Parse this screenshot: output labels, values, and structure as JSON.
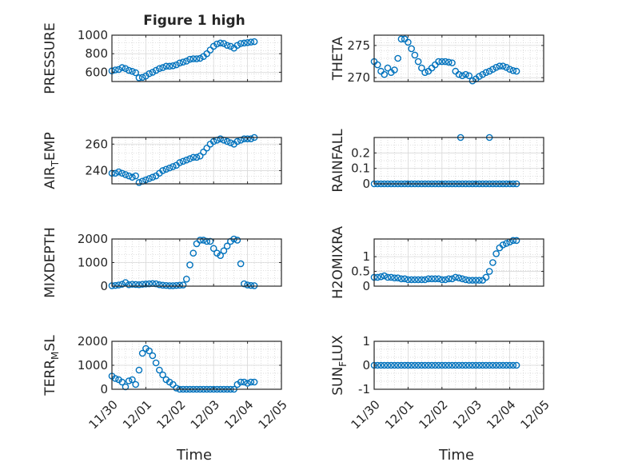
{
  "figure_title": "Figure 1 high",
  "x_tick_labels": [
    "11/30",
    "12/01",
    "12/02",
    "12/03",
    "12/04",
    "12/05"
  ],
  "x_axis_label": "Time",
  "marker_color": "#0072BD",
  "chart_data": [
    {
      "type": "scatter",
      "ylabel": "PRESSURE",
      "ylim": [
        500,
        1000
      ],
      "yticks": [
        600,
        800,
        1000
      ],
      "xlim": [
        0,
        5
      ],
      "grid": true,
      "x": [
        0.0,
        0.1,
        0.2,
        0.3,
        0.4,
        0.5,
        0.6,
        0.7,
        0.8,
        0.9,
        1.0,
        1.1,
        1.2,
        1.3,
        1.4,
        1.5,
        1.6,
        1.7,
        1.8,
        1.9,
        2.0,
        2.1,
        2.2,
        2.3,
        2.4,
        2.5,
        2.6,
        2.7,
        2.8,
        2.9,
        3.0,
        3.1,
        3.2,
        3.3,
        3.4,
        3.5,
        3.6,
        3.7,
        3.8,
        3.9,
        4.0,
        4.1,
        4.2
      ],
      "y": [
        615,
        625,
        630,
        650,
        640,
        620,
        610,
        595,
        540,
        545,
        560,
        585,
        600,
        620,
        640,
        650,
        665,
        665,
        670,
        680,
        700,
        710,
        720,
        740,
        745,
        745,
        750,
        770,
        800,
        840,
        880,
        905,
        915,
        910,
        890,
        880,
        860,
        890,
        910,
        915,
        920,
        925,
        930
      ]
    },
    {
      "type": "scatter",
      "ylabel": "THETA",
      "ylim": [
        269.4,
        276.6
      ],
      "yticks": [
        270,
        275
      ],
      "xlim": [
        0,
        5
      ],
      "grid": true,
      "x": [
        0.0,
        0.1,
        0.2,
        0.3,
        0.4,
        0.5,
        0.6,
        0.7,
        0.8,
        0.9,
        1.0,
        1.1,
        1.2,
        1.3,
        1.4,
        1.5,
        1.6,
        1.7,
        1.8,
        1.9,
        2.0,
        2.1,
        2.2,
        2.3,
        2.4,
        2.5,
        2.6,
        2.7,
        2.8,
        2.9,
        3.0,
        3.1,
        3.2,
        3.3,
        3.4,
        3.5,
        3.6,
        3.7,
        3.8,
        3.9,
        4.0,
        4.1,
        4.2
      ],
      "y": [
        272.5,
        272.0,
        271.0,
        270.5,
        271.5,
        270.8,
        271.2,
        273.0,
        276.0,
        276.0,
        275.5,
        274.5,
        273.5,
        272.5,
        271.5,
        270.8,
        271.0,
        271.5,
        272.0,
        272.5,
        272.5,
        272.5,
        272.4,
        272.3,
        271.0,
        270.5,
        270.3,
        270.5,
        270.3,
        269.5,
        269.8,
        270.2,
        270.5,
        270.8,
        271.0,
        271.3,
        271.6,
        271.8,
        271.8,
        271.6,
        271.3,
        271.1,
        271.0
      ]
    },
    {
      "type": "scatter",
      "ylabel": "AIR_TEMP",
      "ylim": [
        230,
        265
      ],
      "yticks": [
        240,
        260
      ],
      "xlim": [
        0,
        5
      ],
      "grid": true,
      "x": [
        0.0,
        0.1,
        0.2,
        0.3,
        0.4,
        0.5,
        0.6,
        0.7,
        0.8,
        0.9,
        1.0,
        1.1,
        1.2,
        1.3,
        1.4,
        1.5,
        1.6,
        1.7,
        1.8,
        1.9,
        2.0,
        2.1,
        2.2,
        2.3,
        2.4,
        2.5,
        2.6,
        2.7,
        2.8,
        2.9,
        3.0,
        3.1,
        3.2,
        3.3,
        3.4,
        3.5,
        3.6,
        3.7,
        3.8,
        3.9,
        4.0,
        4.1,
        4.2
      ],
      "y": [
        238,
        238,
        239,
        238,
        237,
        236,
        235,
        236,
        231,
        232,
        233,
        234,
        235,
        236,
        238,
        240,
        241,
        242,
        243,
        244,
        246,
        247,
        248,
        249,
        250,
        250,
        251,
        254,
        257,
        260,
        262,
        263,
        264,
        263,
        262,
        261,
        260,
        262,
        263,
        264,
        264,
        264,
        265
      ]
    },
    {
      "type": "scatter",
      "ylabel": "RAINFALL",
      "ylim": [
        0,
        0.3
      ],
      "yticks": [
        0,
        0.1,
        0.2
      ],
      "xlim": [
        0,
        5
      ],
      "grid": true,
      "x": [
        0.0,
        0.1,
        0.2,
        0.3,
        0.4,
        0.5,
        0.6,
        0.7,
        0.8,
        0.9,
        1.0,
        1.1,
        1.2,
        1.3,
        1.4,
        1.5,
        1.6,
        1.7,
        1.8,
        1.9,
        2.0,
        2.1,
        2.2,
        2.3,
        2.4,
        2.5,
        2.6,
        2.7,
        2.8,
        2.9,
        3.0,
        3.1,
        3.2,
        3.3,
        3.4,
        3.5,
        3.6,
        3.7,
        3.8,
        3.9,
        4.0,
        4.1,
        4.2,
        2.55,
        3.4
      ],
      "y": [
        0,
        0,
        0,
        0,
        0,
        0,
        0,
        0,
        0,
        0,
        0,
        0,
        0,
        0,
        0,
        0,
        0,
        0,
        0,
        0,
        0,
        0,
        0,
        0,
        0,
        0,
        0,
        0,
        0,
        0,
        0,
        0,
        0,
        0,
        0,
        0,
        0,
        0,
        0,
        0,
        0,
        0,
        0,
        0.3,
        0.3
      ]
    },
    {
      "type": "scatter",
      "ylabel": "MIXDEPTH",
      "ylim": [
        0,
        2000
      ],
      "yticks": [
        0,
        1000,
        2000
      ],
      "xlim": [
        0,
        5
      ],
      "grid": true,
      "x": [
        0.0,
        0.1,
        0.2,
        0.3,
        0.4,
        0.5,
        0.6,
        0.7,
        0.8,
        0.9,
        1.0,
        1.1,
        1.2,
        1.3,
        1.4,
        1.5,
        1.6,
        1.7,
        1.8,
        1.9,
        2.0,
        2.1,
        2.2,
        2.3,
        2.4,
        2.5,
        2.6,
        2.7,
        2.8,
        2.9,
        3.0,
        3.1,
        3.2,
        3.3,
        3.4,
        3.5,
        3.6,
        3.7,
        3.8,
        3.9,
        4.0,
        4.1,
        4.2
      ],
      "y": [
        20,
        30,
        50,
        80,
        150,
        60,
        80,
        70,
        60,
        80,
        90,
        100,
        110,
        100,
        60,
        40,
        30,
        20,
        20,
        30,
        40,
        50,
        300,
        900,
        1400,
        1800,
        1950,
        1950,
        1900,
        1900,
        1600,
        1400,
        1300,
        1500,
        1700,
        1900,
        2000,
        1950,
        950,
        100,
        50,
        30,
        20
      ]
    },
    {
      "type": "scatter",
      "ylabel": "H2OMIXRA",
      "ylim": [
        0,
        1.6
      ],
      "yticks": [
        0,
        0.5,
        1
      ],
      "xlim": [
        0,
        5
      ],
      "grid": true,
      "x": [
        0.0,
        0.1,
        0.2,
        0.3,
        0.4,
        0.5,
        0.6,
        0.7,
        0.8,
        0.9,
        1.0,
        1.1,
        1.2,
        1.3,
        1.4,
        1.5,
        1.6,
        1.7,
        1.8,
        1.9,
        2.0,
        2.1,
        2.2,
        2.3,
        2.4,
        2.5,
        2.6,
        2.7,
        2.8,
        2.9,
        3.0,
        3.1,
        3.2,
        3.3,
        3.4,
        3.5,
        3.6,
        3.7,
        3.8,
        3.9,
        4.0,
        4.1,
        4.2
      ],
      "y": [
        0.3,
        0.3,
        0.32,
        0.35,
        0.3,
        0.3,
        0.28,
        0.28,
        0.25,
        0.25,
        0.22,
        0.22,
        0.22,
        0.22,
        0.22,
        0.22,
        0.25,
        0.25,
        0.25,
        0.25,
        0.22,
        0.22,
        0.25,
        0.25,
        0.3,
        0.28,
        0.25,
        0.22,
        0.2,
        0.2,
        0.2,
        0.2,
        0.2,
        0.3,
        0.5,
        0.8,
        1.1,
        1.3,
        1.4,
        1.45,
        1.5,
        1.55,
        1.55
      ]
    },
    {
      "type": "scatter",
      "ylabel": "TERR_MSL",
      "ylim": [
        0,
        2000
      ],
      "yticks": [
        0,
        1000,
        2000
      ],
      "xlim": [
        0,
        5
      ],
      "grid": true,
      "x": [
        0.0,
        0.1,
        0.2,
        0.3,
        0.4,
        0.5,
        0.6,
        0.7,
        0.8,
        0.9,
        1.0,
        1.1,
        1.2,
        1.3,
        1.4,
        1.5,
        1.6,
        1.7,
        1.8,
        1.9,
        2.0,
        2.1,
        2.2,
        2.3,
        2.4,
        2.5,
        2.6,
        2.7,
        2.8,
        2.9,
        3.0,
        3.1,
        3.2,
        3.3,
        3.4,
        3.5,
        3.6,
        3.7,
        3.8,
        3.9,
        4.0,
        4.1,
        4.2
      ],
      "y": [
        550,
        450,
        400,
        300,
        100,
        350,
        400,
        200,
        800,
        1500,
        1700,
        1600,
        1400,
        1100,
        800,
        600,
        400,
        300,
        200,
        50,
        0,
        0,
        0,
        0,
        0,
        0,
        0,
        0,
        0,
        0,
        0,
        0,
        0,
        0,
        0,
        0,
        0,
        200,
        300,
        300,
        250,
        300,
        300
      ]
    },
    {
      "type": "scatter",
      "ylabel": "SUN_FLUX",
      "ylim": [
        -1,
        1
      ],
      "yticks": [
        -1,
        0,
        1
      ],
      "xlim": [
        0,
        5
      ],
      "grid": true,
      "x": [
        0.0,
        0.1,
        0.2,
        0.3,
        0.4,
        0.5,
        0.6,
        0.7,
        0.8,
        0.9,
        1.0,
        1.1,
        1.2,
        1.3,
        1.4,
        1.5,
        1.6,
        1.7,
        1.8,
        1.9,
        2.0,
        2.1,
        2.2,
        2.3,
        2.4,
        2.5,
        2.6,
        2.7,
        2.8,
        2.9,
        3.0,
        3.1,
        3.2,
        3.3,
        3.4,
        3.5,
        3.6,
        3.7,
        3.8,
        3.9,
        4.0,
        4.1,
        4.2
      ],
      "y": [
        0,
        0,
        0,
        0,
        0,
        0,
        0,
        0,
        0,
        0,
        0,
        0,
        0,
        0,
        0,
        0,
        0,
        0,
        0,
        0,
        0,
        0,
        0,
        0,
        0,
        0,
        0,
        0,
        0,
        0,
        0,
        0,
        0,
        0,
        0,
        0,
        0,
        0,
        0,
        0,
        0,
        0,
        0
      ]
    }
  ]
}
